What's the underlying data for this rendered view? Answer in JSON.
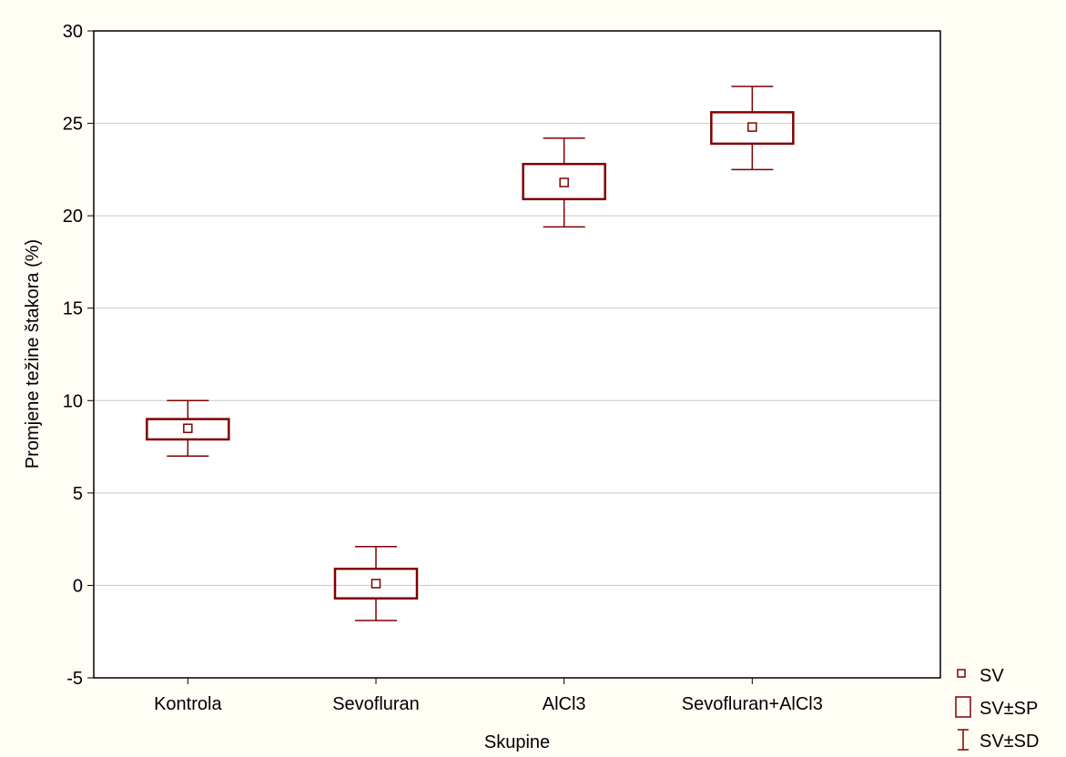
{
  "chart_data": {
    "type": "box",
    "categories": [
      "Kontrola",
      "Sevofluran",
      "AlCl3",
      "Sevofluran+AlCl3"
    ],
    "series": [
      {
        "name": "SV",
        "values": [
          8.5,
          0.1,
          21.8,
          24.8
        ]
      },
      {
        "name": "SV±SP",
        "values": [
          [
            7.9,
            9.0
          ],
          [
            -0.7,
            0.9
          ],
          [
            20.9,
            22.8
          ],
          [
            23.9,
            25.6
          ]
        ]
      },
      {
        "name": "SV±SD",
        "values": [
          [
            7.0,
            10.0
          ],
          [
            -1.9,
            2.1
          ],
          [
            19.4,
            24.2
          ],
          [
            22.5,
            27.0
          ]
        ]
      }
    ],
    "xlabel": "Skupine",
    "ylabel": "Promjene težine štakora (%)",
    "ylim": [
      -5,
      30
    ],
    "yticks": [
      "-5",
      "0",
      "5",
      "10",
      "15",
      "20",
      "25",
      "30"
    ],
    "grid": true,
    "legend_position": "bottom-right",
    "color": "#800000"
  }
}
